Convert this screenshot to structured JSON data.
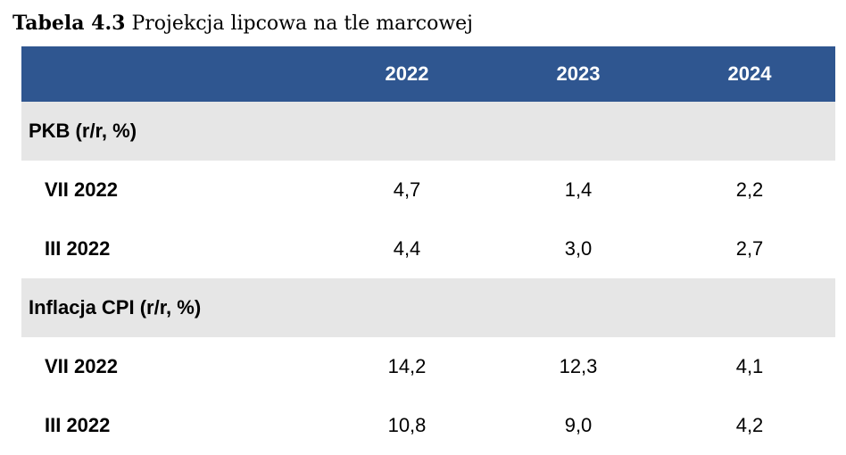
{
  "caption": {
    "label": "Tabela 4.3",
    "title": "Projekcja lipcowa na tle marcowej"
  },
  "table": {
    "columns": [
      "2022",
      "2023",
      "2024"
    ],
    "sections": [
      {
        "title": "PKB (r/r, %)",
        "rows": [
          {
            "label": "VII 2022",
            "values": [
              "4,7",
              "1,4",
              "2,2"
            ]
          },
          {
            "label": "III 2022",
            "values": [
              "4,4",
              "3,0",
              "2,7"
            ]
          }
        ]
      },
      {
        "title": "Inflacja CPI (r/r, %)",
        "rows": [
          {
            "label": "VII 2022",
            "values": [
              "14,2",
              "12,3",
              "4,1"
            ]
          },
          {
            "label": "III 2022",
            "values": [
              "10,8",
              "9,0",
              "4,2"
            ]
          }
        ]
      }
    ]
  },
  "colors": {
    "header_bg": "#2f5690",
    "section_bg": "#e6e6e6"
  }
}
